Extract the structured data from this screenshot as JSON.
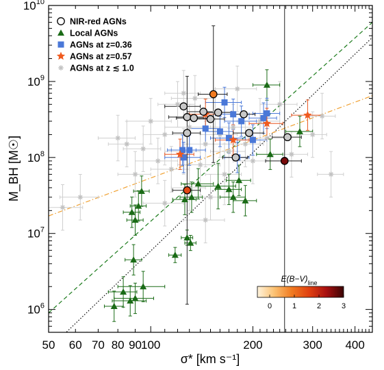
{
  "chart_data": {
    "type": "scatter",
    "x_scale": "log",
    "y_scale": "log",
    "xlim": [
      50,
      450
    ],
    "ylim": [
      500000,
      10000000000
    ],
    "xlabel": "σ* [km s⁻¹]",
    "ylabel": "M_BH [M☉]",
    "x_ticks": [
      50,
      60,
      70,
      80,
      90,
      100,
      200,
      300,
      400
    ],
    "x_tick_labels": [
      "50",
      "60",
      "70",
      "80",
      "90",
      "100",
      "200",
      "300",
      "400"
    ],
    "y_ticks": [
      1000000,
      10000000,
      100000000,
      1000000000,
      10000000000
    ],
    "y_tick_labels": [
      {
        "base": "10",
        "exp": "6"
      },
      {
        "base": "10",
        "exp": "7"
      },
      {
        "base": "10",
        "exp": "8"
      },
      {
        "base": "10",
        "exp": "9"
      },
      {
        "base": "10",
        "exp": "10"
      }
    ],
    "legend_position": "top-left",
    "legend": [
      {
        "label": "NIR-red AGNs",
        "marker": "circle",
        "color": "#000000"
      },
      {
        "label": "Local AGNs",
        "marker": "triangle",
        "color": "#1a6b16"
      },
      {
        "label": "AGNs at z=0.36",
        "marker": "square",
        "color": "#4a78d8"
      },
      {
        "label": "AGNs at z=0.57",
        "marker": "star",
        "color": "#f05a1e"
      },
      {
        "label": "AGNs at z ≲ 1.0",
        "marker": "asterisk",
        "color": "#c2c2c2"
      }
    ],
    "colorbar": {
      "label": "E(B−V)",
      "label_subscript": "line",
      "range": [
        -0.5,
        3
      ],
      "ticks": [
        "0",
        "1",
        "2",
        "3"
      ],
      "colors": [
        "#fff3dc",
        "#fbc070",
        "#f07a20",
        "#e04010",
        "#a81010",
        "#3a0505"
      ]
    },
    "lines": [
      {
        "style": "dotted",
        "color": "#000000",
        "points": [
          [
            55,
            450000
          ],
          [
            450,
            3800000000
          ]
        ]
      },
      {
        "style": "dashed",
        "color": "#1a7a1a",
        "points": [
          [
            50,
            900000
          ],
          [
            450,
            6000000000
          ]
        ]
      },
      {
        "style": "dashdot",
        "color": "#f0a030",
        "points": [
          [
            50,
            17000000
          ],
          [
            450,
            650000000
          ]
        ]
      }
    ],
    "series": [
      {
        "name": "AGNs at z ≲ 1.0",
        "marker": "asterisk",
        "color": "#c2c2c2",
        "points": [
          [
            55,
            22000000,
            8,
            0.3
          ],
          [
            62,
            30000000,
            8,
            0.3
          ],
          [
            80,
            180000000,
            10,
            0.3
          ],
          [
            85,
            150000000,
            10,
            0.3
          ],
          [
            95,
            130000000,
            12,
            0.3
          ],
          [
            100,
            300000000,
            15,
            0.3
          ],
          [
            105,
            90000000,
            15,
            0.3
          ],
          [
            110,
            200000000,
            15,
            0.4
          ],
          [
            115,
            70000000,
            15,
            0.3
          ],
          [
            120,
            500000000,
            15,
            0.3
          ],
          [
            125,
            120000000,
            15,
            0.3
          ],
          [
            130,
            250000000,
            20,
            0.3
          ],
          [
            135,
            600000000,
            20,
            0.3
          ],
          [
            140,
            80000000,
            20,
            0.4
          ],
          [
            145,
            150000000,
            20,
            0.3
          ],
          [
            150,
            30000000,
            20,
            0.3
          ],
          [
            155,
            400000000,
            20,
            0.3
          ],
          [
            160,
            200000000,
            20,
            0.3
          ],
          [
            165,
            60000000,
            20,
            0.4
          ],
          [
            170,
            120000000,
            20,
            0.3
          ],
          [
            175,
            250000000,
            25,
            0.3
          ],
          [
            180,
            800000000,
            25,
            0.3
          ],
          [
            190,
            150000000,
            25,
            0.3
          ],
          [
            200,
            90000000,
            25,
            0.3
          ],
          [
            210,
            300000000,
            30,
            0.3
          ],
          [
            220,
            180000000,
            30,
            0.3
          ],
          [
            240,
            500000000,
            30,
            0.3
          ],
          [
            260,
            110000000,
            30,
            0.3
          ],
          [
            300,
            200000000,
            30,
            0.3
          ],
          [
            320,
            350000000,
            30,
            0.3
          ],
          [
            340,
            60000000,
            30,
            0.3
          ],
          [
            130,
            40000000,
            15,
            0.3
          ],
          [
            145,
            15000000,
            20,
            0.3
          ],
          [
            110,
            25000000,
            15,
            0.3
          ],
          [
            125,
            700000000,
            15,
            0.3
          ],
          [
            90,
            60000000,
            10,
            0.3
          ]
        ]
      },
      {
        "name": "Local AGNs",
        "marker": "triangle",
        "color": "#1a6b16",
        "points": [
          [
            78,
            1100000,
            5,
            0.2
          ],
          [
            83,
            1700000,
            8,
            0.2
          ],
          [
            87,
            1300000,
            10,
            0.2
          ],
          [
            90,
            1400000,
            12,
            0.2
          ],
          [
            95,
            2000000,
            15,
            0.2
          ],
          [
            89,
            4500000,
            5,
            0.2
          ],
          [
            88,
            19000000,
            5,
            0.2
          ],
          [
            90,
            15000000,
            5,
            0.2
          ],
          [
            92,
            23000000,
            5,
            0.2
          ],
          [
            94,
            36000000,
            5,
            0.2
          ],
          [
            118,
            5200000,
            5,
            0.1
          ],
          [
            128,
            8800000,
            5,
            0.1
          ],
          [
            131,
            7500000,
            5,
            0.1
          ],
          [
            126,
            28000000,
            10,
            0.2
          ],
          [
            132,
            30000000,
            10,
            0.2
          ],
          [
            138,
            45000000,
            15,
            0.2
          ],
          [
            158,
            42000000,
            20,
            0.3
          ],
          [
            170,
            38000000,
            15,
            0.2
          ],
          [
            175,
            30000000,
            15,
            0.2
          ],
          [
            182,
            50000000,
            15,
            0.2
          ],
          [
            190,
            27000000,
            15,
            0.2
          ],
          [
            220,
            900000000,
            20,
            0.2
          ],
          [
            225,
            110000000,
            20,
            0.2
          ],
          [
            275,
            220000000,
            25,
            0.2
          ]
        ]
      },
      {
        "name": "AGNs at z=0.36",
        "marker": "square",
        "color": "#4a78d8",
        "points": [
          [
            124,
            125000000,
            12,
            0.2
          ],
          [
            125,
            100000000,
            15,
            0.2
          ],
          [
            130,
            125000000,
            15,
            0.2
          ],
          [
            145,
            240000000,
            15,
            0.2
          ],
          [
            165,
            530000000,
            20,
            0.2
          ],
          [
            170,
            180000000,
            20,
            0.2
          ],
          [
            175,
            370000000,
            20,
            0.2
          ],
          [
            180,
            100000000,
            15,
            0.2
          ],
          [
            185,
            300000000,
            20,
            0.2
          ],
          [
            200,
            170000000,
            20,
            0.2
          ],
          [
            215,
            330000000,
            20,
            0.2
          ],
          [
            220,
            380000000,
            20,
            0.2
          ],
          [
            160,
            220000000,
            15,
            0.2
          ]
        ]
      },
      {
        "name": "AGNs at z=0.57",
        "marker": "star",
        "color": "#f05a1e",
        "points": [
          [
            122,
            110000000,
            12,
            0.2
          ],
          [
            145,
            370000000,
            15,
            0.2
          ],
          [
            175,
            170000000,
            20,
            0.2
          ],
          [
            220,
            280000000,
            25,
            0.2
          ],
          [
            290,
            360000000,
            30,
            0.2
          ]
        ]
      },
      {
        "name": "NIR-red AGNs",
        "marker": "circle",
        "color": "#000000",
        "points": [
          [
            128,
            37000000,
            12,
            1.5
          ],
          [
            153,
            680000000,
            15,
            0.9
          ],
          [
            248,
            90000000,
            30,
            2.6
          ],
          [
            125,
            470000000,
            15,
            0
          ],
          [
            128,
            340000000,
            15,
            0
          ],
          [
            134,
            330000000,
            15,
            0
          ],
          [
            143,
            400000000,
            15,
            0
          ],
          [
            150,
            320000000,
            15,
            0
          ],
          [
            158,
            390000000,
            15,
            0
          ],
          [
            178,
            100000000,
            15,
            0
          ],
          [
            188,
            370000000,
            15,
            0
          ],
          [
            195,
            210000000,
            20,
            0
          ],
          [
            253,
            185000000,
            25,
            0
          ],
          [
            128,
            210000000,
            12,
            0
          ]
        ]
      }
    ]
  }
}
